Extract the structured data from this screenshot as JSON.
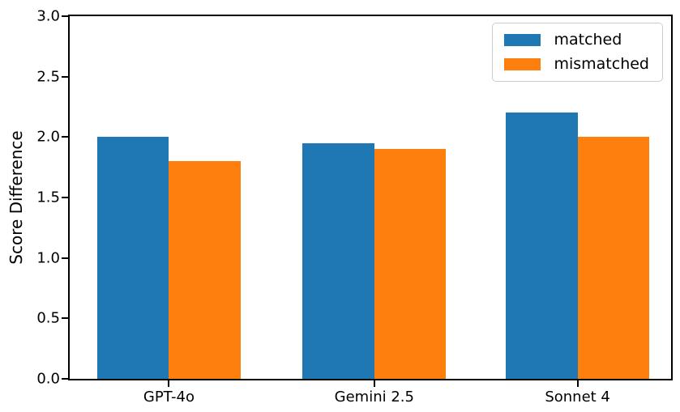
{
  "chart_data": {
    "type": "bar",
    "title": "",
    "categories": [
      "GPT-4o",
      "Gemini 2.5",
      "Sonnet 4"
    ],
    "series": [
      {
        "name": "matched",
        "color": "#1f77b4",
        "values": [
          2.0,
          1.95,
          2.2
        ]
      },
      {
        "name": "mismatched",
        "color": "#ff7f0e",
        "values": [
          1.8,
          1.9,
          2.0
        ]
      }
    ],
    "xlabel": "",
    "ylabel": "Score Difference",
    "ylim": [
      0.0,
      3.0
    ],
    "yticks": [
      "0.0",
      "0.5",
      "1.0",
      "1.5",
      "2.0",
      "2.5",
      "3.0"
    ],
    "grid": false,
    "legend_position": "upper right",
    "bar_width_fraction": 0.35
  }
}
